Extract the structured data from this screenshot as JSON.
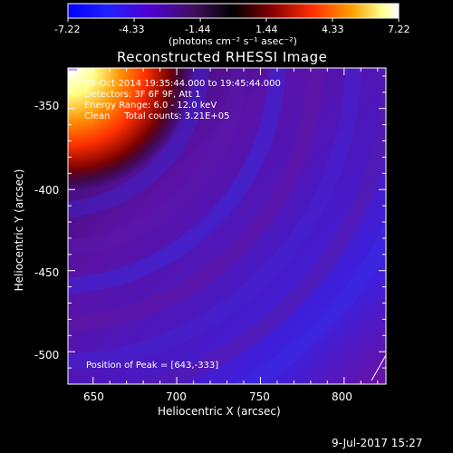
{
  "colorbar": {
    "ticks": [
      "-7.22",
      "-4.33",
      "-1.44",
      "1.44",
      "4.33",
      "7.22"
    ],
    "unit_label": "(photons cm⁻² s⁻¹ asec⁻²)",
    "range": [
      -7.22,
      7.22
    ]
  },
  "chart_data": {
    "type": "heatmap",
    "title": "Reconstructed RHESSI Image",
    "xlabel": "Heliocentric X (arcsec)",
    "ylabel": "Heliocentric Y (arcsec)",
    "xlim": [
      635,
      825
    ],
    "ylim": [
      -520,
      -325
    ],
    "x_ticks": [
      "650",
      "700",
      "750",
      "800"
    ],
    "y_ticks": [
      "-350",
      "-400",
      "-450",
      "-500"
    ],
    "annotations": {
      "time_range": "20-Oct-2014 19:35:44.000 to 19:45:44.000",
      "detectors": "Detectors: 3F 6F 9F, Att 1",
      "energy": "Energy Range: 6.0 - 12.0 keV",
      "clean": "Clean     Total counts: 3.21E+05",
      "peak": "Position of Peak = [643,-333]"
    },
    "peak": {
      "x": 643,
      "y": -333
    }
  },
  "footer": {
    "date": "9-Jul-2017 15:27"
  },
  "colors": {
    "cmap": [
      "#0000ff",
      "#2a00ff",
      "#5a00c8",
      "#4a1870",
      "#000000",
      "#8a0000",
      "#ff3000",
      "#ff9000",
      "#ffff80",
      "#ffffff"
    ]
  }
}
